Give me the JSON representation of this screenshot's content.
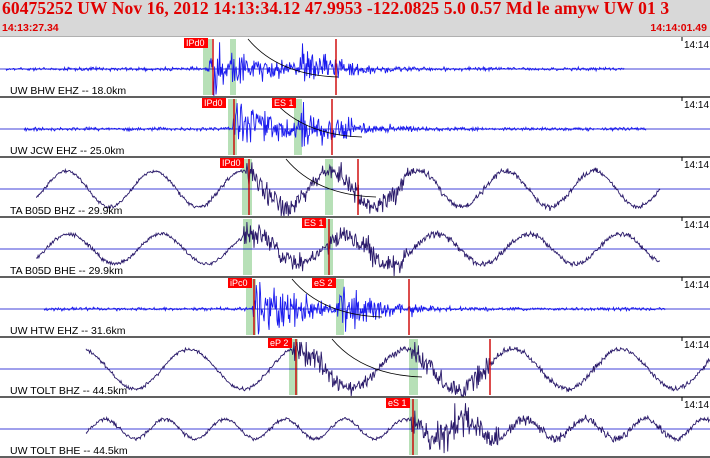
{
  "header": {
    "title": "60475252 UW Nov 16, 2012 14:13:34.12    47.9953 -122.0825  5.0 0.57 Md le amyw UW 01   3",
    "start_time": "14:13:27.34",
    "end_time": "14:14:01.49"
  },
  "traces": [
    {
      "label": "UW BHW EHZ -- 18.0km",
      "right_tick": "14:14",
      "color": "#1a1aee",
      "kind": "hf",
      "picks": [
        {
          "text": "IPd0",
          "side": "left"
        }
      ],
      "extra_lines": 1
    },
    {
      "label": "UW JCW EHZ -- 25.0km",
      "right_tick": "14:14",
      "color": "#1a1aee",
      "kind": "hf",
      "picks": [
        {
          "text": "IPd0",
          "side": "left"
        },
        {
          "text": "ES 1",
          "side": "left"
        }
      ],
      "extra_lines": 1
    },
    {
      "label": "TA B05D BHZ -- 29.9km",
      "right_tick": "14:14",
      "color": "#2a1a6a",
      "kind": "lp",
      "picks": [
        {
          "text": "IPd0",
          "side": "left"
        }
      ],
      "extra_lines": 2
    },
    {
      "label": "TA B05D BHE -- 29.9km",
      "right_tick": "14:14",
      "color": "#2a1a6a",
      "kind": "lp",
      "picks": [
        {
          "text": "ES 1",
          "side": "left"
        }
      ],
      "extra_lines": 0
    },
    {
      "label": "UW HTW EHZ -- 31.6km",
      "right_tick": "14:14",
      "color": "#1a1aee",
      "kind": "hf",
      "picks": [
        {
          "text": "iPc0",
          "side": "left"
        },
        {
          "text": "eS 2",
          "side": "left"
        }
      ],
      "extra_lines": 2
    },
    {
      "label": "UW TOLT BHZ -- 44.5km",
      "right_tick": "14:14",
      "color": "#2a1a6a",
      "kind": "lp",
      "picks": [
        {
          "text": "eP 2",
          "side": "left"
        }
      ],
      "extra_lines": 2
    },
    {
      "label": "UW TOLT BHE -- 44.5km",
      "right_tick": "14:14",
      "color": "#2a1a6a",
      "kind": "lp",
      "picks": [
        {
          "text": "eS 1",
          "side": "left"
        }
      ],
      "extra_lines": 0
    }
  ],
  "colors": {
    "header_text": "#e00000",
    "pick_box": "#ff0000",
    "pick_line": "#cc0000",
    "window_band": "#b7e0b7",
    "axis_line": "#0000cc"
  }
}
